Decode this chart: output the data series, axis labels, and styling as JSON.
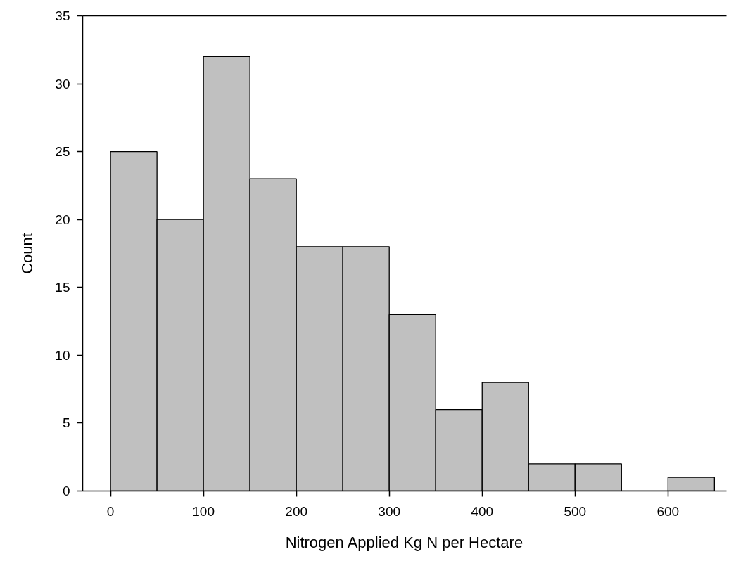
{
  "chart_data": {
    "type": "histogram",
    "xlabel": "Nitrogen Applied Kg N per Hectare",
    "ylabel": "Count",
    "bins": [
      0,
      50,
      100,
      150,
      200,
      250,
      300,
      350,
      400,
      450,
      500,
      550,
      600,
      650
    ],
    "values": [
      25,
      20,
      32,
      23,
      18,
      18,
      13,
      6,
      8,
      2,
      2,
      0,
      1
    ],
    "color": "#c0c0c0",
    "xlim": [
      -30,
      663
    ],
    "xticks": [
      0,
      100,
      200,
      300,
      400,
      500,
      600
    ],
    "ylim": [
      0,
      35
    ],
    "yticks": [
      0,
      5,
      10,
      15,
      20,
      25,
      30,
      35
    ],
    "grid": false
  }
}
